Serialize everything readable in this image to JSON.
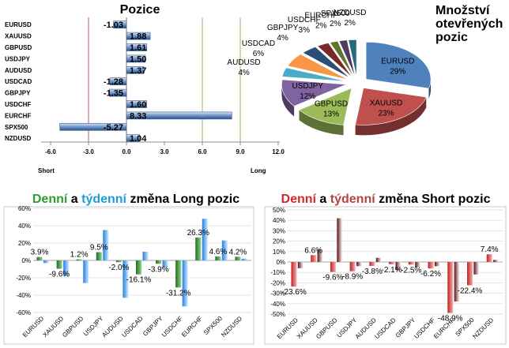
{
  "chart_data": [
    {
      "id": "positions",
      "type": "bar",
      "orientation": "horizontal",
      "title": "Pozice",
      "xlabel_left": "Short",
      "xlabel_right": "Long",
      "xlim": [
        -6,
        12
      ],
      "xticks": [
        "-6.0",
        "-3.0",
        "0.0",
        "3.0",
        "6.0",
        "9.0",
        "12.0"
      ],
      "categories": [
        "EURUSD",
        "XAUUSD",
        "GBPUSD",
        "USDJPY",
        "AUDUSD",
        "USDCAD",
        "GBPJPY",
        "USDCHF",
        "EURCHF",
        "SPX500",
        "NZDUSD"
      ],
      "values": [
        -1.03,
        1.88,
        1.61,
        1.5,
        1.37,
        -1.28,
        -1.35,
        1.6,
        8.33,
        -5.27,
        1.04
      ],
      "value_labels": [
        "-1.03",
        "1.88",
        "1.61",
        "1.50",
        "1.37",
        "-1.28",
        "-1.35",
        "1.60",
        "8.33",
        "-5.27",
        "1.04"
      ],
      "reference_lines": [
        -3,
        6,
        9
      ],
      "reference_colors": [
        "#c0504d",
        "#9bbb59",
        "#9bbb59"
      ]
    },
    {
      "id": "open-positions",
      "type": "pie",
      "title_lines": [
        "Množství",
        "otevřených",
        "pozic"
      ],
      "slices": [
        {
          "label": "EURUSD",
          "value": 29,
          "text": "29%",
          "color": "#4f81bd"
        },
        {
          "label": "XAUUSD",
          "value": 23,
          "text": "23%",
          "color": "#c0504d"
        },
        {
          "label": "GBPUSD",
          "value": 13,
          "text": "13%",
          "color": "#9bbb59"
        },
        {
          "label": "USDJPY",
          "value": 12,
          "text": "12%",
          "color": "#8064a2"
        },
        {
          "label": "AUDUSD",
          "value": 4,
          "text": "4%",
          "color": "#4bacc6"
        },
        {
          "label": "USDCAD",
          "value": 6,
          "text": "6%",
          "color": "#f79646"
        },
        {
          "label": "GBPJPY",
          "value": 4,
          "text": "4%",
          "color": "#2c4d75"
        },
        {
          "label": "USDCHF",
          "value": 3,
          "text": "3%",
          "color": "#772c2a"
        },
        {
          "label": "EURCHF",
          "value": 2,
          "text": "2%",
          "color": "#5f7530"
        },
        {
          "label": "SPX500",
          "value": 2,
          "text": "2%",
          "color": "#4d3b62"
        },
        {
          "label": "NZDUSD",
          "value": 2,
          "text": "2%",
          "color": "#276a7c"
        }
      ]
    },
    {
      "id": "long-change",
      "type": "bar",
      "title_parts": [
        {
          "text": "Denní",
          "color": "#2ca02c"
        },
        {
          "text": " a ",
          "color": "#000000"
        },
        {
          "text": "týdenní",
          "color": "#1f9bd7"
        },
        {
          "text": " změna Long pozic",
          "color": "#000000"
        }
      ],
      "ylim": [
        -60,
        60
      ],
      "yticks": [
        "60%",
        "40%",
        "20%",
        "0%",
        "-20%",
        "-40%",
        "-60%"
      ],
      "categories": [
        "EURUSD",
        "XAUUSD",
        "GBPUSD",
        "USDJPY",
        "AUDUSD",
        "USDCAD",
        "GBPJPY",
        "USDCHF",
        "EURCHF",
        "SPX500",
        "NZDUSD"
      ],
      "series": [
        {
          "name": "Denní",
          "color": "#2e8b2e",
          "values": [
            3.9,
            -9.6,
            1.2,
            9.5,
            -2.0,
            -16.1,
            -3.9,
            -31.2,
            26.3,
            4.6,
            4.2
          ]
        },
        {
          "name": "Týdenní",
          "color": "#3399ff",
          "values": [
            -3,
            -18,
            -26,
            35,
            -43,
            10,
            -8,
            -53,
            48,
            23,
            2
          ]
        }
      ],
      "data_labels": [
        "3.9%",
        "-9.6%",
        "1.2%",
        "9.5%",
        "-2.0%",
        "-16.1%",
        "-3.9%",
        "-31.2%",
        "26.3%",
        "4.6%",
        "4.2%"
      ]
    },
    {
      "id": "short-change",
      "type": "bar",
      "title_parts": [
        {
          "text": "Denní",
          "color": "#d62728"
        },
        {
          "text": " a ",
          "color": "#000000"
        },
        {
          "text": "týdenní",
          "color": "#b5443d"
        },
        {
          "text": " změna Short pozic",
          "color": "#000000"
        }
      ],
      "ylim": [
        -50,
        50
      ],
      "yticks": [
        "50%",
        "40%",
        "30%",
        "20%",
        "10%",
        "0%",
        "-10%",
        "-20%",
        "-30%",
        "-40%",
        "-50%"
      ],
      "categories": [
        "EURUSD",
        "XAUUSD",
        "GBPUSD",
        "USDJPY",
        "AUDUSD",
        "USDCAD",
        "GBPJPY",
        "USDCHF",
        "EURCHF",
        "SPX500",
        "NZDUSD"
      ],
      "series": [
        {
          "name": "Denní",
          "color": "#d42a2a",
          "values": [
            -23.6,
            6.6,
            -9.6,
            -8.9,
            -3.8,
            -2.1,
            -2.5,
            -6.2,
            -48.9,
            -22.4,
            7.4
          ]
        },
        {
          "name": "Týdenní",
          "color": "#7a1a1a",
          "values": [
            -6,
            12,
            42,
            -4,
            4,
            -8,
            -5,
            -4,
            -38,
            -12,
            2
          ]
        }
      ],
      "data_labels": [
        "-23.6%",
        "6.6%",
        "-9.6%",
        "-8.9%",
        "-3.8%",
        "-2.1%",
        "-2.5%",
        "-6.2%",
        "-48.9%",
        "-22.4%",
        "7.4%"
      ]
    }
  ]
}
